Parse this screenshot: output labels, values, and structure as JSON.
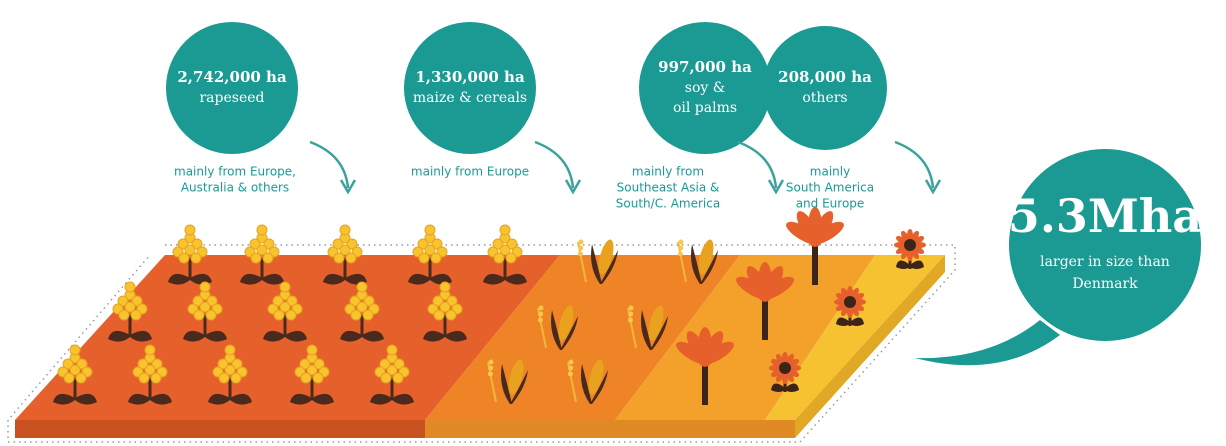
{
  "items": [
    {
      "amount": "2,742,000 ha",
      "crop": [
        "rapeseed"
      ],
      "origin": [
        "mainly from Europe,",
        "Australia & others"
      ]
    },
    {
      "amount": "1,330,000 ha",
      "crop": [
        "maize & cereals"
      ],
      "origin": [
        "mainly from Europe"
      ]
    },
    {
      "amount": "997,000 ha",
      "crop": [
        "soy &",
        "oil palms"
      ],
      "origin": [
        "mainly from",
        "Southeast Asia &",
        "South/C. America"
      ]
    },
    {
      "amount": "208,000 ha",
      "crop": [
        "others"
      ],
      "origin": [
        "mainly",
        "South America",
        "and Europe"
      ]
    }
  ],
  "total": {
    "amount": "5.3Mha",
    "note": [
      "larger in size than",
      "Denmark"
    ]
  }
}
